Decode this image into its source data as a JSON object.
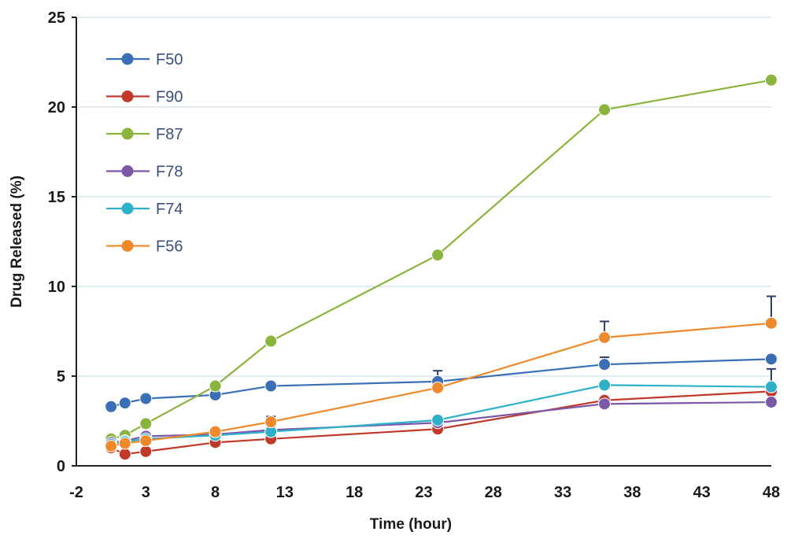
{
  "chart_data": {
    "type": "line",
    "xlabel": "Time (hour)",
    "ylabel": "Drug Released (%)",
    "xlim": [
      -2,
      48
    ],
    "ylim": [
      0,
      25
    ],
    "x_ticks": [
      -2,
      3,
      8,
      13,
      18,
      23,
      28,
      33,
      38,
      43,
      48
    ],
    "y_ticks": [
      0,
      5,
      10,
      15,
      20,
      25
    ],
    "grid": "horizontal",
    "legend_position": "top-left",
    "x": [
      0.5,
      1.5,
      3,
      8,
      12,
      24,
      36,
      48
    ],
    "series": [
      {
        "name": "F50",
        "color": "#3a6fb5",
        "values": [
          3.3,
          3.5,
          3.75,
          3.95,
          4.45,
          4.7,
          5.65,
          5.95
        ],
        "error_upper": [
          null,
          null,
          null,
          null,
          0.2,
          0.6,
          0.4,
          null
        ]
      },
      {
        "name": "F90",
        "color": "#c0392b",
        "values": [
          1.0,
          0.65,
          0.8,
          1.3,
          1.5,
          2.05,
          3.65,
          4.15
        ],
        "error_upper": [
          null,
          null,
          null,
          null,
          null,
          null,
          null,
          null
        ]
      },
      {
        "name": "F87",
        "color": "#8ab43c",
        "values": [
          1.5,
          1.7,
          2.35,
          4.45,
          6.95,
          11.75,
          19.85,
          21.5
        ],
        "error_upper": [
          null,
          null,
          null,
          null,
          null,
          null,
          null,
          null
        ]
      },
      {
        "name": "F78",
        "color": "#7b58a8",
        "values": [
          1.3,
          1.4,
          1.65,
          1.75,
          2.0,
          2.4,
          3.45,
          3.55
        ],
        "error_upper": [
          null,
          null,
          null,
          null,
          null,
          null,
          null,
          null
        ]
      },
      {
        "name": "F74",
        "color": "#2eb1c8",
        "values": [
          1.2,
          1.35,
          1.5,
          1.7,
          1.9,
          2.55,
          4.5,
          4.4
        ],
        "error_upper": [
          null,
          null,
          null,
          null,
          null,
          null,
          null,
          1.0
        ]
      },
      {
        "name": "F56",
        "color": "#ef8a2c",
        "values": [
          1.1,
          1.25,
          1.4,
          1.9,
          2.45,
          4.35,
          7.15,
          7.95
        ],
        "error_upper": [
          null,
          null,
          null,
          null,
          0.3,
          null,
          0.9,
          1.5
        ]
      }
    ]
  }
}
